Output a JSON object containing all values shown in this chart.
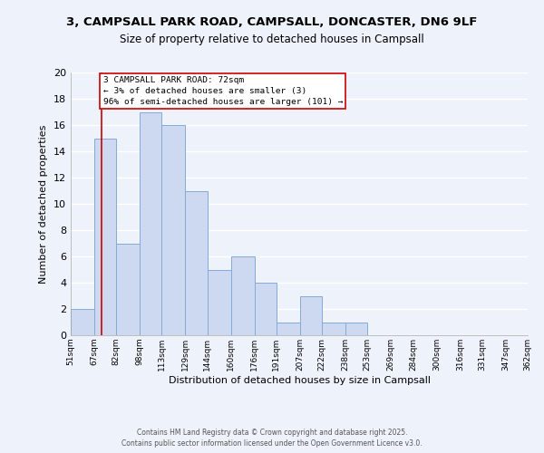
{
  "title_line1": "3, CAMPSALL PARK ROAD, CAMPSALL, DONCASTER, DN6 9LF",
  "title_line2": "Size of property relative to detached houses in Campsall",
  "bar_edges": [
    51,
    67,
    82,
    98,
    113,
    129,
    144,
    160,
    176,
    191,
    207,
    222,
    238,
    253,
    269,
    284,
    300,
    316,
    331,
    347,
    362
  ],
  "bar_heights": [
    2,
    15,
    7,
    17,
    16,
    11,
    5,
    6,
    4,
    1,
    3,
    1,
    1,
    0,
    0,
    0,
    0,
    0,
    0,
    0
  ],
  "bar_color": "#ccd9f0",
  "bar_edgecolor": "#85aad4",
  "xlabel": "Distribution of detached houses by size in Campsall",
  "ylabel": "Number of detached properties",
  "ylim": [
    0,
    20
  ],
  "yticks": [
    0,
    2,
    4,
    6,
    8,
    10,
    12,
    14,
    16,
    18,
    20
  ],
  "x_tick_labels": [
    "51sqm",
    "67sqm",
    "82sqm",
    "98sqm",
    "113sqm",
    "129sqm",
    "144sqm",
    "160sqm",
    "176sqm",
    "191sqm",
    "207sqm",
    "222sqm",
    "238sqm",
    "253sqm",
    "269sqm",
    "284sqm",
    "300sqm",
    "316sqm",
    "331sqm",
    "347sqm",
    "362sqm"
  ],
  "annotation_box_text": "3 CAMPSALL PARK ROAD: 72sqm\n← 3% of detached houses are smaller (3)\n96% of semi-detached houses are larger (101) →",
  "vline_x": 72,
  "vline_color": "#cc0000",
  "annotation_box_facecolor": "#ffffff",
  "annotation_box_edgecolor": "#cc0000",
  "background_color": "#eef2fb",
  "grid_color": "#ffffff",
  "footer_line1": "Contains HM Land Registry data © Crown copyright and database right 2025.",
  "footer_line2": "Contains public sector information licensed under the Open Government Licence v3.0."
}
